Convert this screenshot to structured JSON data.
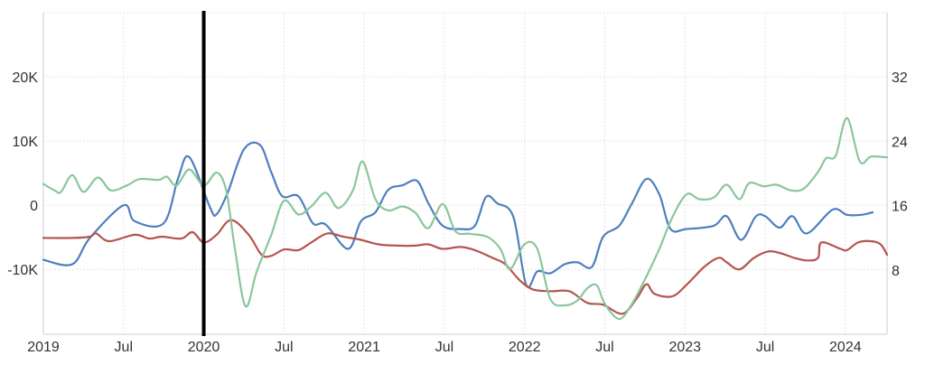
{
  "chart_data": {
    "type": "line",
    "title": "",
    "xlabel": "",
    "ylabel_left": "",
    "ylabel_right": "",
    "x_ticks": [
      {
        "value": 2019.0,
        "label": "2019"
      },
      {
        "value": 2019.5,
        "label": "Jul"
      },
      {
        "value": 2020.0,
        "label": "2020"
      },
      {
        "value": 2020.5,
        "label": "Jul"
      },
      {
        "value": 2021.0,
        "label": "2021"
      },
      {
        "value": 2021.5,
        "label": "Jul"
      },
      {
        "value": 2022.0,
        "label": "2022"
      },
      {
        "value": 2022.5,
        "label": "Jul"
      },
      {
        "value": 2023.0,
        "label": "2023"
      },
      {
        "value": 2023.5,
        "label": "Jul"
      },
      {
        "value": 2024.0,
        "label": "2024"
      }
    ],
    "xlim": [
      2019.0,
      2024.26
    ],
    "y_left": {
      "ylim": [
        -20.1,
        30
      ],
      "unit": "K",
      "ticks": [
        {
          "value": 20,
          "label": "20K"
        },
        {
          "value": 10,
          "label": "10K"
        },
        {
          "value": 0,
          "label": "0"
        },
        {
          "value": -10,
          "label": "-10K"
        }
      ]
    },
    "y_right": {
      "ylim": [
        0,
        40
      ],
      "ticks": [
        {
          "value": 32,
          "label": "32"
        },
        {
          "value": 24,
          "label": "24"
        },
        {
          "value": 16,
          "label": "16"
        },
        {
          "value": 8,
          "label": "8"
        }
      ]
    },
    "grid": true,
    "legend": "none",
    "marker_line": {
      "x": 2020.0,
      "color": "#000000"
    },
    "series": [
      {
        "name": "blue",
        "axis": "left",
        "color": "#4f7fbf",
        "points": [
          [
            2019.0,
            -8.5
          ],
          [
            2019.18,
            -9.2
          ],
          [
            2019.29,
            -5.1
          ],
          [
            2019.5,
            0
          ],
          [
            2019.57,
            -2.5
          ],
          [
            2019.75,
            -2.8
          ],
          [
            2019.84,
            4.2
          ],
          [
            2019.91,
            7.5
          ],
          [
            2020.04,
            -0.4
          ],
          [
            2020.08,
            -1.4
          ],
          [
            2020.15,
            2.0
          ],
          [
            2020.25,
            8.7
          ],
          [
            2020.35,
            9.4
          ],
          [
            2020.42,
            5.2
          ],
          [
            2020.49,
            1.4
          ],
          [
            2020.59,
            1.4
          ],
          [
            2020.68,
            -2.8
          ],
          [
            2020.76,
            -3.0
          ],
          [
            2020.9,
            -6.8
          ],
          [
            2020.98,
            -2.5
          ],
          [
            2021.07,
            -1.1
          ],
          [
            2021.15,
            2.4
          ],
          [
            2021.24,
            3.1
          ],
          [
            2021.33,
            3.8
          ],
          [
            2021.4,
            0.3
          ],
          [
            2021.49,
            -3.2
          ],
          [
            2021.6,
            -3.7
          ],
          [
            2021.69,
            -3.2
          ],
          [
            2021.76,
            1.3
          ],
          [
            2021.83,
            0.3
          ],
          [
            2021.93,
            -1.8
          ],
          [
            2022.01,
            -12.4
          ],
          [
            2022.08,
            -10.3
          ],
          [
            2022.16,
            -10.6
          ],
          [
            2022.25,
            -9.2
          ],
          [
            2022.33,
            -8.9
          ],
          [
            2022.42,
            -9.6
          ],
          [
            2022.49,
            -4.9
          ],
          [
            2022.59,
            -3.2
          ],
          [
            2022.67,
            0.3
          ],
          [
            2022.76,
            4.1
          ],
          [
            2022.84,
            1.7
          ],
          [
            2022.91,
            -3.7
          ],
          [
            2023.01,
            -3.7
          ],
          [
            2023.18,
            -3.2
          ],
          [
            2023.26,
            -1.7
          ],
          [
            2023.35,
            -5.4
          ],
          [
            2023.44,
            -1.8
          ],
          [
            2023.5,
            -1.7
          ],
          [
            2023.59,
            -3.5
          ],
          [
            2023.67,
            -1.7
          ],
          [
            2023.76,
            -4.4
          ],
          [
            2023.92,
            -0.7
          ],
          [
            2024.01,
            -1.5
          ],
          [
            2024.1,
            -1.5
          ],
          [
            2024.17,
            -1.1
          ]
        ]
      },
      {
        "name": "red",
        "axis": "left",
        "color": "#b5544f",
        "points": [
          [
            2019.0,
            -5.1
          ],
          [
            2019.18,
            -5.1
          ],
          [
            2019.29,
            -4.9
          ],
          [
            2019.33,
            -4.4
          ],
          [
            2019.41,
            -5.6
          ],
          [
            2019.57,
            -4.6
          ],
          [
            2019.66,
            -5.2
          ],
          [
            2019.74,
            -4.9
          ],
          [
            2019.86,
            -5.2
          ],
          [
            2019.93,
            -4.2
          ],
          [
            2020.0,
            -5.8
          ],
          [
            2020.08,
            -4.6
          ],
          [
            2020.17,
            -2.3
          ],
          [
            2020.28,
            -4.6
          ],
          [
            2020.36,
            -7.7
          ],
          [
            2020.42,
            -7.9
          ],
          [
            2020.5,
            -6.9
          ],
          [
            2020.59,
            -7.0
          ],
          [
            2020.67,
            -5.8
          ],
          [
            2020.77,
            -4.4
          ],
          [
            2020.87,
            -4.9
          ],
          [
            2020.98,
            -5.4
          ],
          [
            2021.09,
            -6.1
          ],
          [
            2021.21,
            -6.3
          ],
          [
            2021.32,
            -6.3
          ],
          [
            2021.4,
            -6.1
          ],
          [
            2021.49,
            -6.8
          ],
          [
            2021.6,
            -6.5
          ],
          [
            2021.69,
            -7.0
          ],
          [
            2021.8,
            -8.2
          ],
          [
            2021.88,
            -9.2
          ],
          [
            2021.97,
            -11.7
          ],
          [
            2022.05,
            -13.1
          ],
          [
            2022.16,
            -13.4
          ],
          [
            2022.28,
            -13.4
          ],
          [
            2022.39,
            -15.2
          ],
          [
            2022.49,
            -15.5
          ],
          [
            2022.61,
            -16.9
          ],
          [
            2022.7,
            -14.5
          ],
          [
            2022.76,
            -12.3
          ],
          [
            2022.81,
            -13.8
          ],
          [
            2022.92,
            -14.2
          ],
          [
            2023.01,
            -12.4
          ],
          [
            2023.12,
            -9.6
          ],
          [
            2023.21,
            -8.2
          ],
          [
            2023.26,
            -8.9
          ],
          [
            2023.34,
            -10.0
          ],
          [
            2023.43,
            -8.2
          ],
          [
            2023.52,
            -7.2
          ],
          [
            2023.6,
            -7.5
          ],
          [
            2023.68,
            -8.2
          ],
          [
            2023.76,
            -8.6
          ],
          [
            2023.83,
            -8.2
          ],
          [
            2023.85,
            -5.8
          ],
          [
            2023.97,
            -6.8
          ],
          [
            2024.01,
            -7.0
          ],
          [
            2024.08,
            -5.8
          ],
          [
            2024.16,
            -5.6
          ],
          [
            2024.22,
            -6.1
          ],
          [
            2024.26,
            -7.7
          ]
        ]
      },
      {
        "name": "green",
        "axis": "right",
        "color": "#8cc69c",
        "points": [
          [
            2019.0,
            18.7
          ],
          [
            2019.07,
            17.9
          ],
          [
            2019.11,
            17.7
          ],
          [
            2019.18,
            19.8
          ],
          [
            2019.25,
            17.7
          ],
          [
            2019.34,
            19.5
          ],
          [
            2019.42,
            17.9
          ],
          [
            2019.52,
            18.5
          ],
          [
            2019.6,
            19.3
          ],
          [
            2019.72,
            19.2
          ],
          [
            2019.77,
            19.6
          ],
          [
            2019.83,
            18.5
          ],
          [
            2019.91,
            20.5
          ],
          [
            2020.0,
            18.5
          ],
          [
            2020.08,
            20.1
          ],
          [
            2020.14,
            17.9
          ],
          [
            2020.19,
            11.2
          ],
          [
            2020.26,
            3.5
          ],
          [
            2020.33,
            7.8
          ],
          [
            2020.42,
            12.3
          ],
          [
            2020.5,
            16.6
          ],
          [
            2020.59,
            14.9
          ],
          [
            2020.67,
            15.9
          ],
          [
            2020.76,
            17.6
          ],
          [
            2020.84,
            15.7
          ],
          [
            2020.93,
            17.9
          ],
          [
            2020.99,
            21.5
          ],
          [
            2021.07,
            16.8
          ],
          [
            2021.15,
            15.4
          ],
          [
            2021.24,
            15.9
          ],
          [
            2021.32,
            15.1
          ],
          [
            2021.4,
            13.2
          ],
          [
            2021.49,
            16.2
          ],
          [
            2021.57,
            12.8
          ],
          [
            2021.66,
            12.5
          ],
          [
            2021.77,
            12.1
          ],
          [
            2021.85,
            10.6
          ],
          [
            2021.91,
            8.1
          ],
          [
            2022.0,
            11.2
          ],
          [
            2022.08,
            10.6
          ],
          [
            2022.16,
            4.4
          ],
          [
            2022.25,
            3.6
          ],
          [
            2022.33,
            4.2
          ],
          [
            2022.39,
            5.7
          ],
          [
            2022.45,
            6.1
          ],
          [
            2022.5,
            3.8
          ],
          [
            2022.59,
            1.9
          ],
          [
            2022.67,
            3.8
          ],
          [
            2022.76,
            7.2
          ],
          [
            2022.84,
            10.6
          ],
          [
            2022.92,
            14.5
          ],
          [
            2023.01,
            17.4
          ],
          [
            2023.09,
            16.8
          ],
          [
            2023.18,
            17.0
          ],
          [
            2023.26,
            18.6
          ],
          [
            2023.34,
            16.8
          ],
          [
            2023.4,
            18.8
          ],
          [
            2023.49,
            18.4
          ],
          [
            2023.57,
            18.6
          ],
          [
            2023.66,
            17.9
          ],
          [
            2023.74,
            18.1
          ],
          [
            2023.83,
            20.2
          ],
          [
            2023.88,
            21.9
          ],
          [
            2023.94,
            22.2
          ],
          [
            2024.01,
            26.9
          ],
          [
            2024.09,
            21.5
          ],
          [
            2024.16,
            22.1
          ],
          [
            2024.26,
            22.0
          ]
        ]
      }
    ]
  }
}
